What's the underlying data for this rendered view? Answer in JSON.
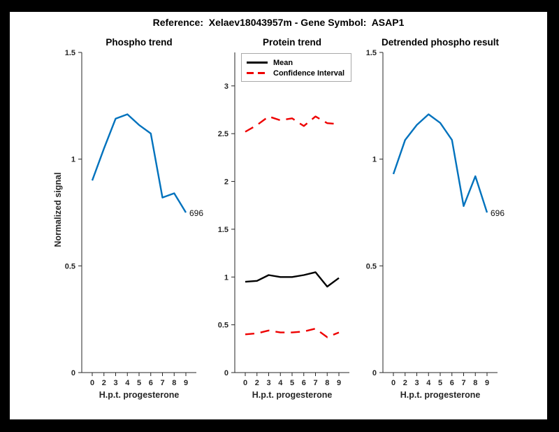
{
  "header": {
    "title": "Reference:  Xelaev18043957m - Gene Symbol:  ASAP1"
  },
  "colors": {
    "figure_bg": "#ffffff",
    "frame_bg": "#000000",
    "axis": "#262626",
    "phospho_blue": "#0072BD",
    "mean_black": "#000000",
    "ci_red": "#ee0000"
  },
  "chart_data": [
    {
      "type": "line",
      "title": "Phospho trend",
      "xlabel": "H.p.t. progesterone",
      "ylabel": "Normalized signal",
      "x_tick_labels": [
        "0",
        "2",
        "3",
        "4",
        "5",
        "6",
        "7",
        "8",
        "9"
      ],
      "ylim": [
        0,
        1.5
      ],
      "yticks": [
        0,
        0.5,
        1,
        1.5
      ],
      "grid": false,
      "series": [
        {
          "name": "phospho-line",
          "color": "#0072BD",
          "style": "solid",
          "values": [
            0.9,
            1.05,
            1.19,
            1.21,
            1.16,
            1.12,
            0.82,
            0.84,
            0.75
          ]
        }
      ],
      "annotation": "696"
    },
    {
      "type": "line",
      "title": "Protein trend",
      "xlabel": "H.p.t. progesterone",
      "ylabel": "",
      "x_tick_labels": [
        "0",
        "2",
        "3",
        "4",
        "5",
        "6",
        "7",
        "8",
        "9"
      ],
      "ylim": [
        0,
        3.35
      ],
      "yticks": [
        0,
        0.5,
        1,
        1.5,
        2,
        2.5,
        3
      ],
      "grid": false,
      "legend": [
        "Mean",
        "Confidence Interval"
      ],
      "legend_position": "northeast-inside",
      "series": [
        {
          "name": "ci-upper-line",
          "color": "#ee0000",
          "style": "dashed",
          "values": [
            2.52,
            2.59,
            2.68,
            2.64,
            2.66,
            2.58,
            2.68,
            2.61,
            2.6
          ]
        },
        {
          "name": "mean-line",
          "color": "#000000",
          "style": "solid",
          "values": [
            0.95,
            0.96,
            1.02,
            1.0,
            1.0,
            1.02,
            1.05,
            0.9,
            0.99
          ]
        },
        {
          "name": "ci-lower-line",
          "color": "#ee0000",
          "style": "dashed",
          "values": [
            0.4,
            0.41,
            0.44,
            0.42,
            0.42,
            0.43,
            0.46,
            0.37,
            0.42
          ]
        }
      ],
      "annotation": null
    },
    {
      "type": "line",
      "title": "Detrended phospho result",
      "xlabel": "H.p.t. progesterone",
      "ylabel": "",
      "x_tick_labels": [
        "0",
        "2",
        "3",
        "4",
        "5",
        "6",
        "7",
        "8",
        "9"
      ],
      "ylim": [
        0,
        1.5
      ],
      "yticks": [
        0,
        0.5,
        1,
        1.5
      ],
      "grid": false,
      "series": [
        {
          "name": "detrended-line",
          "color": "#0072BD",
          "style": "solid",
          "values": [
            0.93,
            1.09,
            1.16,
            1.21,
            1.17,
            1.09,
            0.78,
            0.92,
            0.75
          ]
        }
      ],
      "annotation": "696"
    }
  ]
}
